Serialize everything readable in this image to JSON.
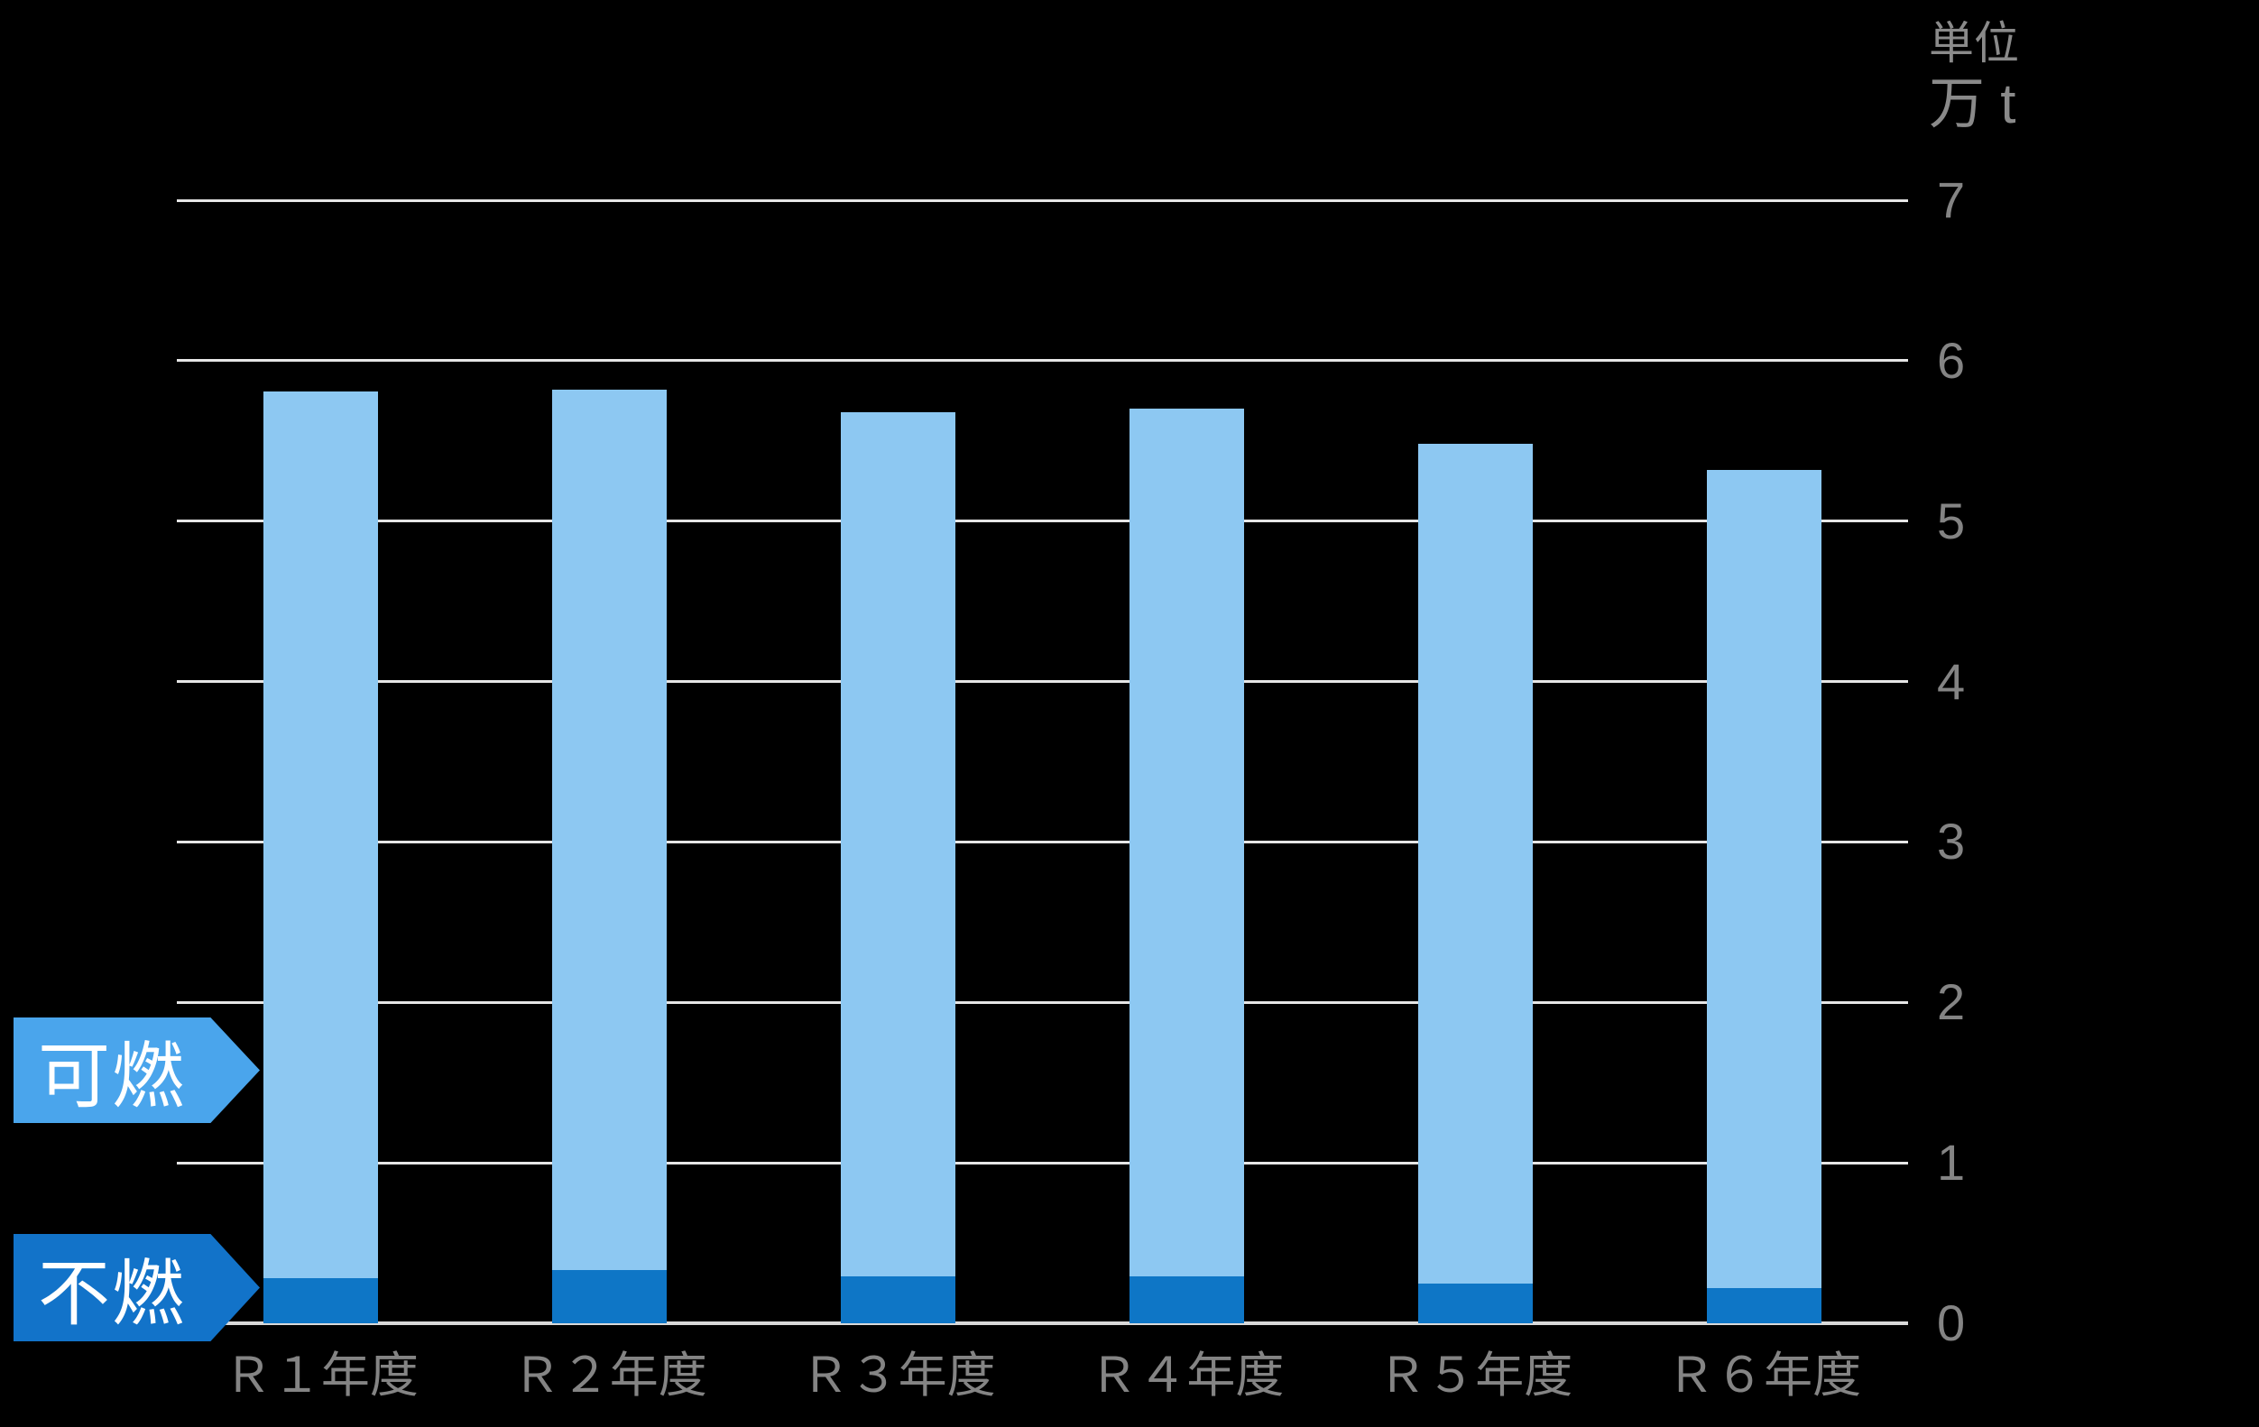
{
  "colors": {
    "background": "#000000",
    "gridline": "#E6E6E6",
    "axisline": "#D9D9D9",
    "axis_text": "#848484",
    "bar_kanen": "#8DC8F2",
    "bar_funen": "#0E76C6",
    "tag_kanen": "#4AA5EC",
    "tag_funen": "#1273C9",
    "tag_text": "#FFFFFF"
  },
  "unit": {
    "line1": "単位",
    "line2": "万 t"
  },
  "legend": {
    "kanen": {
      "label": "可燃"
    },
    "funen": {
      "label": "不燃"
    }
  },
  "chart_data": {
    "type": "bar",
    "stacked": true,
    "title": "",
    "xlabel": "",
    "ylabel": "万 t",
    "ylim": [
      0,
      7
    ],
    "yticks": [
      0,
      1,
      2,
      3,
      4,
      5,
      6,
      7
    ],
    "grid": "horizontal",
    "legend_position": "left-arrow-tags",
    "categories": [
      "Ｒ１年度",
      "Ｒ２年度",
      "Ｒ３年度",
      "Ｒ４年度",
      "Ｒ５年度",
      "Ｒ６年度"
    ],
    "series": [
      {
        "name": "不燃",
        "stack_order": "bottom",
        "values": [
          0.28,
          0.33,
          0.29,
          0.29,
          0.25,
          0.22
        ]
      },
      {
        "name": "可燃",
        "stack_order": "top",
        "values": [
          5.53,
          5.49,
          5.39,
          5.41,
          5.23,
          5.1
        ]
      }
    ],
    "totals": [
      5.81,
      5.82,
      5.68,
      5.7,
      5.48,
      5.32
    ]
  }
}
